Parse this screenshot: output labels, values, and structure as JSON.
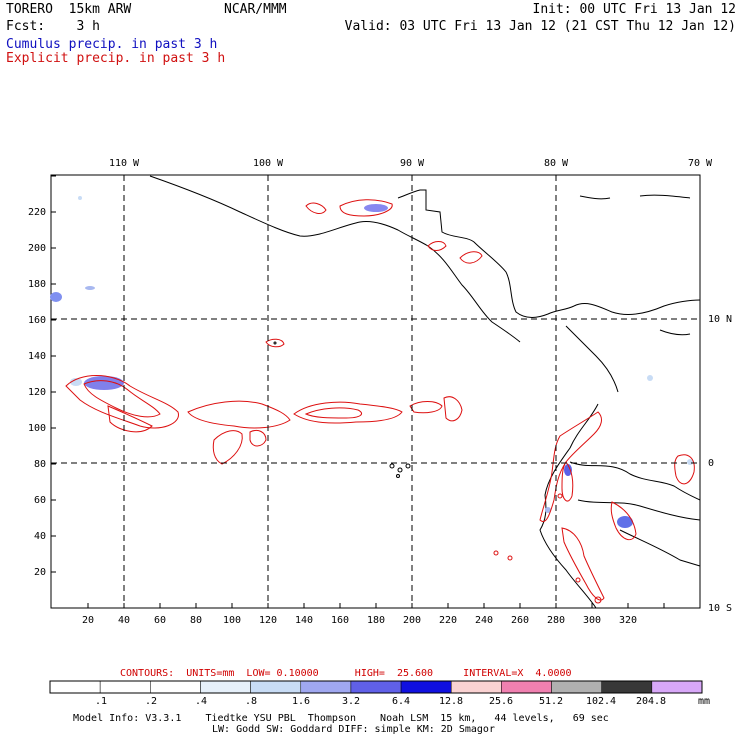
{
  "header": {
    "model": "TORERO  15km ARW",
    "org": "NCAR/MMM",
    "init": "Init: 00 UTC Fri 13 Jan 12",
    "fcst": "Fcst:    3 h",
    "valid": "Valid: 03 UTC Fri 13 Jan 12 (21 CST Thu 12 Jan 12)"
  },
  "legend": {
    "cumulus": "Cumulus precip. in past 3 h",
    "explicit": "Explicit precip. in past 3 h"
  },
  "map": {
    "top_lon_labels": [
      "110 W",
      "100 W",
      "90 W",
      "80 W",
      "70 W"
    ],
    "right_lat_labels": [
      "10 N",
      "0",
      "10 S"
    ],
    "y_tick_labels": [
      "20",
      "40",
      "60",
      "80",
      "100",
      "120",
      "140",
      "160",
      "180",
      "200",
      "220"
    ],
    "x_tick_labels": [
      "20",
      "40",
      "60",
      "80",
      "100",
      "120",
      "140",
      "160",
      "180",
      "200",
      "220",
      "240",
      "260",
      "280",
      "300",
      "320"
    ]
  },
  "contours": {
    "text": "CONTOURS:  UNITS=mm  LOW= 0.10000      HIGH=  25.600     INTERVAL=X  4.0000"
  },
  "colorbar": {
    "labels": [
      ".1",
      ".2",
      ".4",
      ".8",
      "1.6",
      "3.2",
      "6.4",
      "12.8",
      "25.6",
      "51.2",
      "102.4",
      "204.8"
    ],
    "unit": "mm",
    "colors": [
      "#ffffff",
      "#ffffff",
      "#ffffff",
      "#e6f0fa",
      "#c8dcf5",
      "#a0a8f0",
      "#6060e8",
      "#1010e0",
      "#fad2d2",
      "#f080b0",
      "#b0b0b0",
      "#383838",
      "#d8a8f8"
    ]
  },
  "footer": {
    "line1": "Model Info: V3.3.1    Tiedtke YSU PBL  Thompson    Noah LSM  15 km,   44 levels,   69 sec",
    "line2": "LW: Godd SW: Goddard DIFF: simple KM: 2D Smagor"
  }
}
